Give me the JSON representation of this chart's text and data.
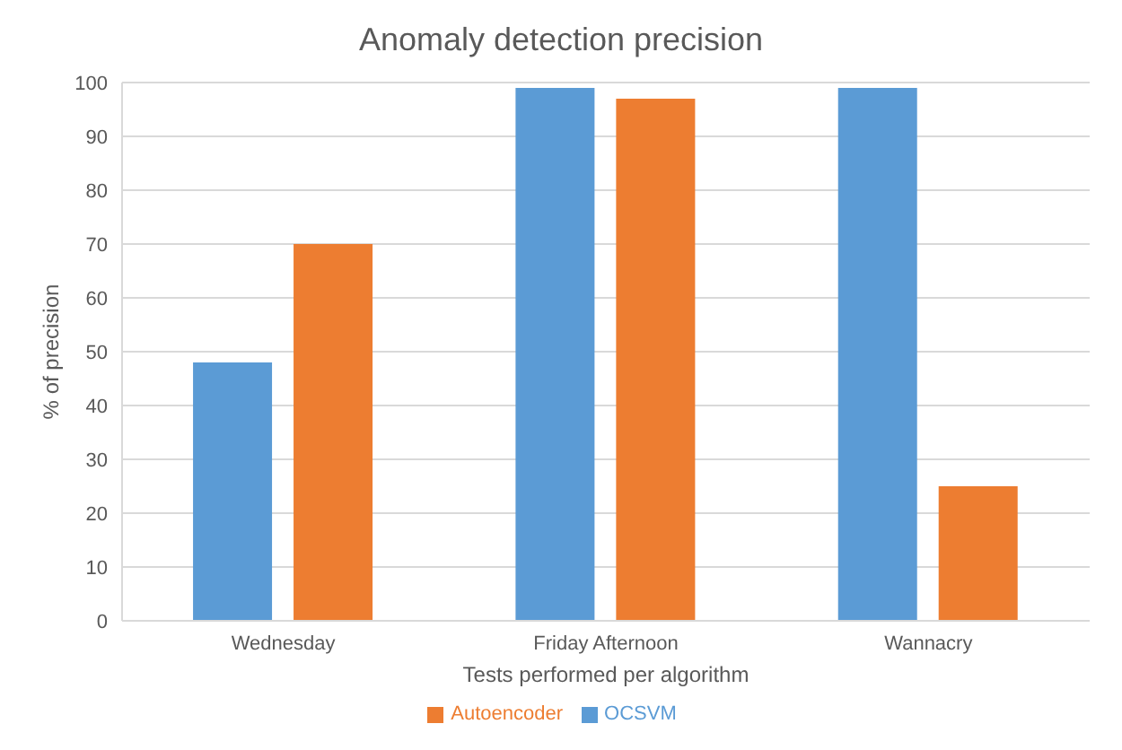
{
  "chart_data": {
    "type": "bar",
    "title": "Anomaly detection precision",
    "xlabel": "Tests performed per algorithm",
    "ylabel": "% of precision",
    "categories": [
      "Wednesday",
      "Friday Afternoon",
      "Wannacry"
    ],
    "series": [
      {
        "name": "OCSVM",
        "color": "#5b9bd5",
        "values": [
          48,
          99,
          99
        ]
      },
      {
        "name": "Autoencoder",
        "color": "#ed7d31",
        "values": [
          70,
          97,
          25
        ]
      }
    ],
    "ylim": [
      0,
      100
    ],
    "yticks": [
      0,
      10,
      20,
      30,
      40,
      50,
      60,
      70,
      80,
      90,
      100
    ],
    "grid": "y",
    "legend": "bottom"
  }
}
